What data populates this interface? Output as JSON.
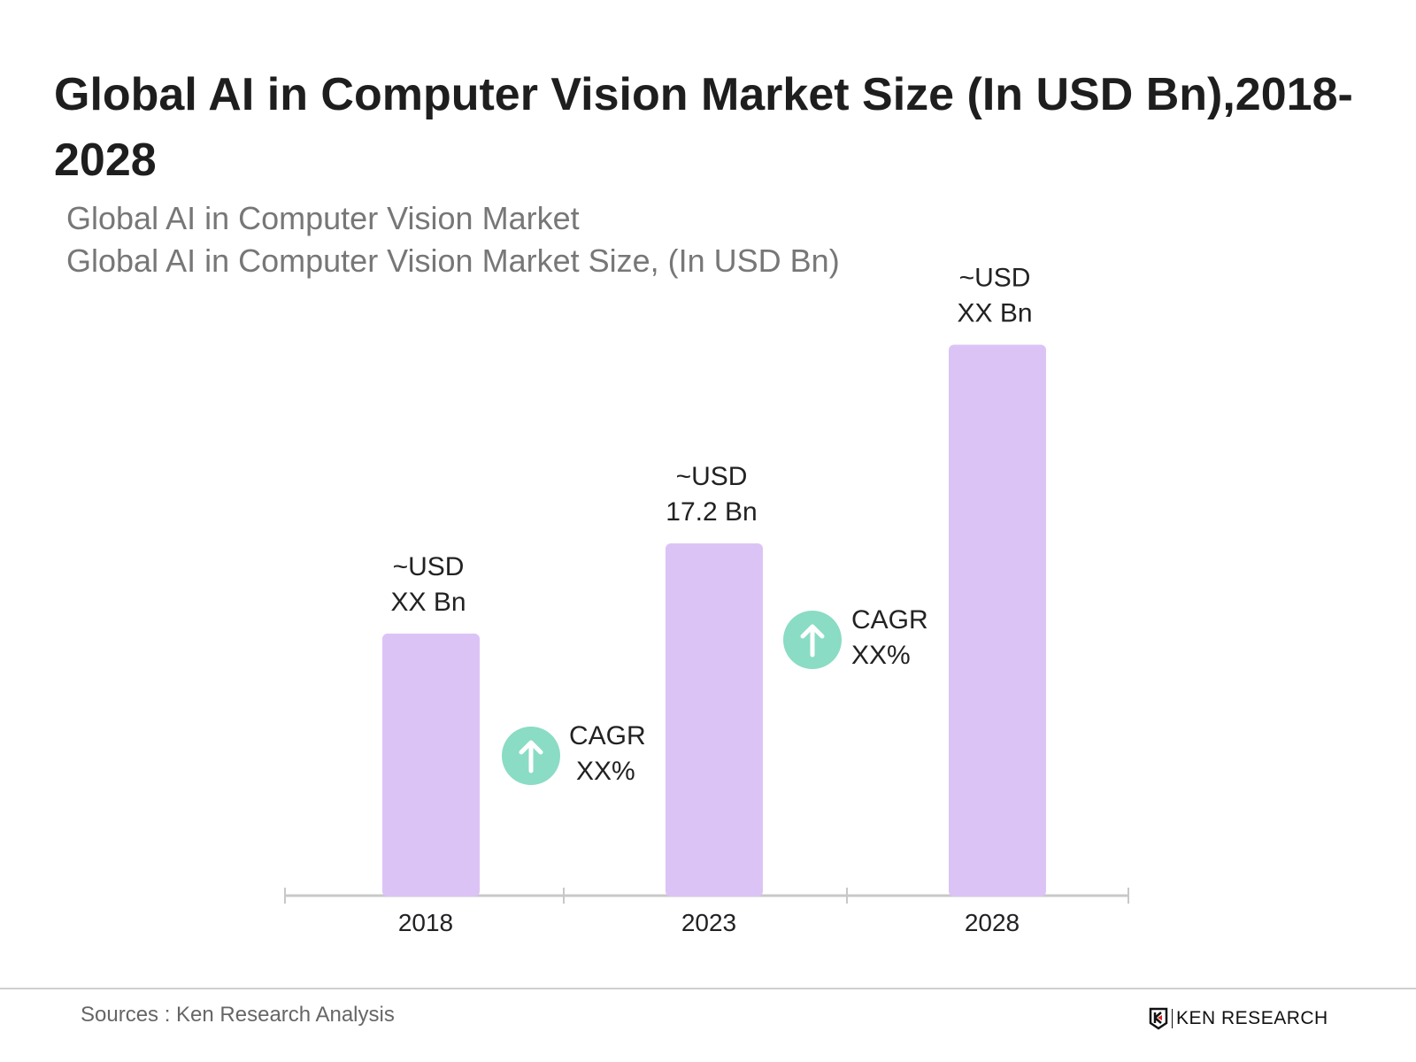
{
  "header": {
    "title": "Global AI in Computer Vision Market Size (In USD Bn),2018-2028",
    "subtitle_1": "Global AI in Computer Vision Market",
    "subtitle_2": "Global AI in Computer Vision Market Size, (In USD Bn)"
  },
  "chart_data": {
    "type": "bar",
    "title": "Global AI in Computer Vision Market Size (In USD Bn),2018-2028",
    "categories": [
      "2018",
      "2023",
      "2028"
    ],
    "values": [
      12.8,
      17.2,
      26.9
    ],
    "data_labels": [
      {
        "line1": "~USD",
        "line2": "XX Bn"
      },
      {
        "line1": "~USD",
        "line2": "17.2 Bn"
      },
      {
        "line1": "~USD",
        "line2": "XX Bn"
      }
    ],
    "annotations": [
      {
        "between": [
          "2018",
          "2023"
        ],
        "icon": "arrow-up-icon",
        "line1": "CAGR",
        "line2": "XX%"
      },
      {
        "between": [
          "2023",
          "2028"
        ],
        "icon": "arrow-up-icon",
        "line1": "CAGR",
        "line2": "XX%"
      }
    ],
    "ylim": [
      0,
      27
    ],
    "grid": false,
    "legend": "none",
    "colors": {
      "bar": "#dcc3f5",
      "cagr_circle": "#8adcc4",
      "axis": "#c8c8c8"
    }
  },
  "footer": {
    "source": "Sources : Ken Research Analysis",
    "logo_text": "KEN RESEARCH"
  }
}
